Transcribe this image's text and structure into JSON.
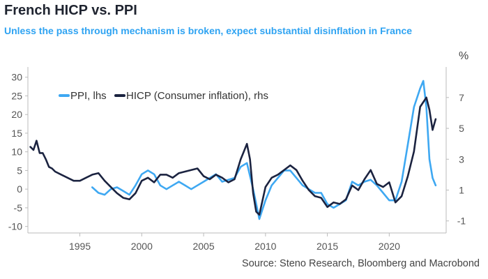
{
  "title": "French HICP vs. PPI",
  "subtitle": "Unless the pass through mechanism is broken, expect substantial disinflation in France",
  "unit_label": "%",
  "source": "Source: Steno Research, Bloomberg and Macrobond",
  "chart_data": {
    "type": "line",
    "title": "French HICP vs. PPI",
    "subtitle": "Unless the pass through mechanism is broken, expect substantial disinflation in France",
    "xlim": [
      1990.8,
      2024.6
    ],
    "x_ticks": [
      1995,
      2000,
      2005,
      2010,
      2015,
      2020
    ],
    "left_axis": {
      "range": [
        -11,
        32
      ],
      "ticks": [
        -10,
        -5,
        0,
        5,
        10,
        15,
        20,
        25,
        30
      ]
    },
    "right_axis": {
      "unit": "%",
      "range": [
        -1.6,
        8.8
      ],
      "ticks": [
        -1,
        1,
        3,
        5,
        7
      ]
    },
    "legend": {
      "position": "top-left"
    },
    "grid": false,
    "series": [
      {
        "name": "PPI, lhs",
        "axis": "left",
        "color": "#3ea8f2",
        "x": [
          1996.0,
          1996.5,
          1997.0,
          1997.5,
          1998.0,
          1998.5,
          1999.0,
          1999.5,
          2000.0,
          2000.5,
          2001.0,
          2001.5,
          2002.0,
          2002.5,
          2003.0,
          2003.5,
          2004.0,
          2004.5,
          2005.0,
          2005.5,
          2006.0,
          2006.5,
          2007.0,
          2007.5,
          2008.0,
          2008.5,
          2009.0,
          2009.5,
          2010.0,
          2010.5,
          2011.0,
          2011.5,
          2012.0,
          2012.5,
          2013.0,
          2013.5,
          2014.0,
          2014.5,
          2015.0,
          2015.5,
          2016.0,
          2016.5,
          2017.0,
          2017.5,
          2018.0,
          2018.5,
          2019.0,
          2019.5,
          2020.0,
          2020.5,
          2021.0,
          2021.5,
          2022.0,
          2022.5,
          2022.75,
          2023.0,
          2023.25,
          2023.5,
          2023.75
        ],
        "values": [
          0.5,
          -1,
          -1.5,
          0,
          0.5,
          -0.5,
          -1.5,
          1,
          4,
          5,
          4,
          1,
          0,
          1,
          2,
          1,
          0,
          1,
          2,
          3,
          4,
          2,
          2.5,
          3,
          6,
          7,
          0,
          -8,
          -3,
          1,
          3,
          5,
          5,
          3,
          1,
          0,
          -1,
          -1,
          -4,
          -5,
          -4,
          -3,
          2,
          1,
          2,
          2.5,
          1,
          -1,
          -3,
          -3,
          2,
          12,
          22,
          27,
          29,
          22,
          8,
          3,
          1
        ]
      },
      {
        "name": "HICP (Consumer inflation), rhs",
        "axis": "right",
        "color": "#1b2340",
        "x": [
          1991.0,
          1991.25,
          1991.5,
          1991.75,
          1992.0,
          1992.25,
          1992.5,
          1992.75,
          1993.0,
          1993.5,
          1994.0,
          1994.5,
          1995.0,
          1995.5,
          1996.0,
          1996.5,
          1997.0,
          1997.5,
          1998.0,
          1998.5,
          1999.0,
          1999.5,
          2000.0,
          2000.5,
          2001.0,
          2001.5,
          2002.0,
          2002.5,
          2003.0,
          2003.5,
          2004.0,
          2004.5,
          2005.0,
          2005.5,
          2006.0,
          2006.5,
          2007.0,
          2007.5,
          2008.0,
          2008.25,
          2008.5,
          2008.75,
          2009.0,
          2009.25,
          2009.5,
          2009.75,
          2010.0,
          2010.5,
          2011.0,
          2011.5,
          2012.0,
          2012.5,
          2013.0,
          2013.5,
          2014.0,
          2014.5,
          2015.0,
          2015.5,
          2016.0,
          2016.5,
          2017.0,
          2017.5,
          2018.0,
          2018.5,
          2019.0,
          2019.5,
          2020.0,
          2020.5,
          2021.0,
          2021.5,
          2022.0,
          2022.5,
          2022.75,
          2023.0,
          2023.25,
          2023.5,
          2023.75
        ],
        "values": [
          3.8,
          3.6,
          4.2,
          3.4,
          3.4,
          3.0,
          2.5,
          2.4,
          2.2,
          2.0,
          1.8,
          1.6,
          1.6,
          1.8,
          2.0,
          2.1,
          1.6,
          1.2,
          0.8,
          0.5,
          0.4,
          0.8,
          1.6,
          1.8,
          1.5,
          2.0,
          2.0,
          1.8,
          2.1,
          2.2,
          2.3,
          2.4,
          1.9,
          1.7,
          2.0,
          1.8,
          1.5,
          1.7,
          3.0,
          3.5,
          4.0,
          3.0,
          0.8,
          -0.4,
          -0.6,
          0.3,
          1.2,
          1.8,
          2.0,
          2.3,
          2.6,
          2.3,
          1.6,
          1.0,
          0.6,
          0.5,
          -0.1,
          0.2,
          0.1,
          0.4,
          1.3,
          1.0,
          1.7,
          2.3,
          1.4,
          1.2,
          1.5,
          0.2,
          0.6,
          1.9,
          3.5,
          6.4,
          6.7,
          7.0,
          6.2,
          4.9,
          5.6
        ]
      }
    ]
  }
}
